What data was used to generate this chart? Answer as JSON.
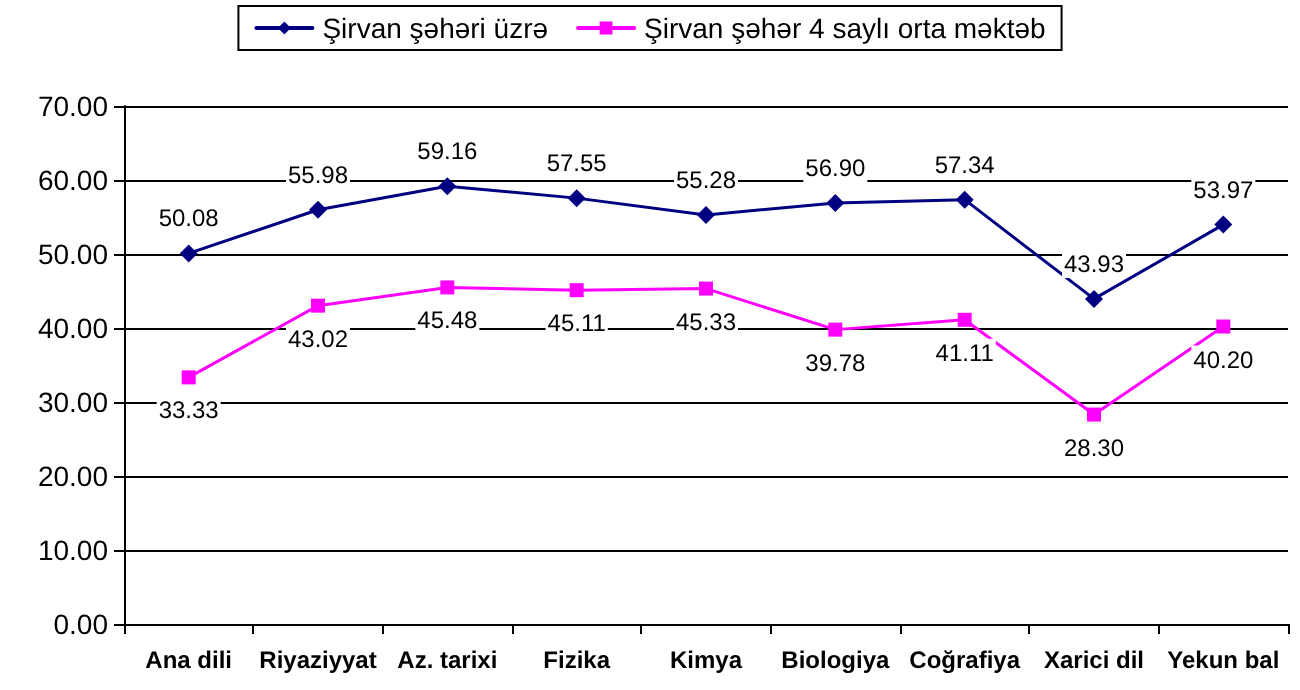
{
  "chart_data": {
    "type": "line",
    "categories": [
      "Ana dili",
      "Riyaziyyat",
      "Az. tarixi",
      "Fizika",
      "Kimya",
      "Biologiya",
      "Coğrafiya",
      "Xarici dil",
      "Yekun bal"
    ],
    "series": [
      {
        "name": "Şirvan şəhəri üzrə",
        "color": "#000080",
        "marker": "diamond",
        "values": [
          50.08,
          55.98,
          59.16,
          57.55,
          55.28,
          56.9,
          57.34,
          43.93,
          53.97
        ],
        "value_labels": [
          "50.08",
          "55.98",
          "59.16",
          "57.55",
          "55.28",
          "56.90",
          "57.34",
          "43.93",
          "53.97"
        ]
      },
      {
        "name": "Şirvan şəhər 4 saylı orta məktəb",
        "color": "#ff00ff",
        "marker": "square",
        "values": [
          33.33,
          43.02,
          45.48,
          45.11,
          45.33,
          39.78,
          41.11,
          28.3,
          40.2
        ],
        "value_labels": [
          "33.33",
          "43.02",
          "45.48",
          "45.11",
          "45.33",
          "39.78",
          "41.11",
          "28.30",
          "40.20"
        ]
      }
    ],
    "ylim": [
      0,
      70
    ],
    "yticks": [
      {
        "value": 0,
        "label": "0.00"
      },
      {
        "value": 10,
        "label": "10.00"
      },
      {
        "value": 20,
        "label": "20.00"
      },
      {
        "value": 30,
        "label": "30.00"
      },
      {
        "value": 40,
        "label": "40.00"
      },
      {
        "value": 50,
        "label": "50.00"
      },
      {
        "value": 60,
        "label": "60.00"
      },
      {
        "value": 70,
        "label": "70.00"
      }
    ],
    "grid": "y",
    "legend": "top"
  }
}
